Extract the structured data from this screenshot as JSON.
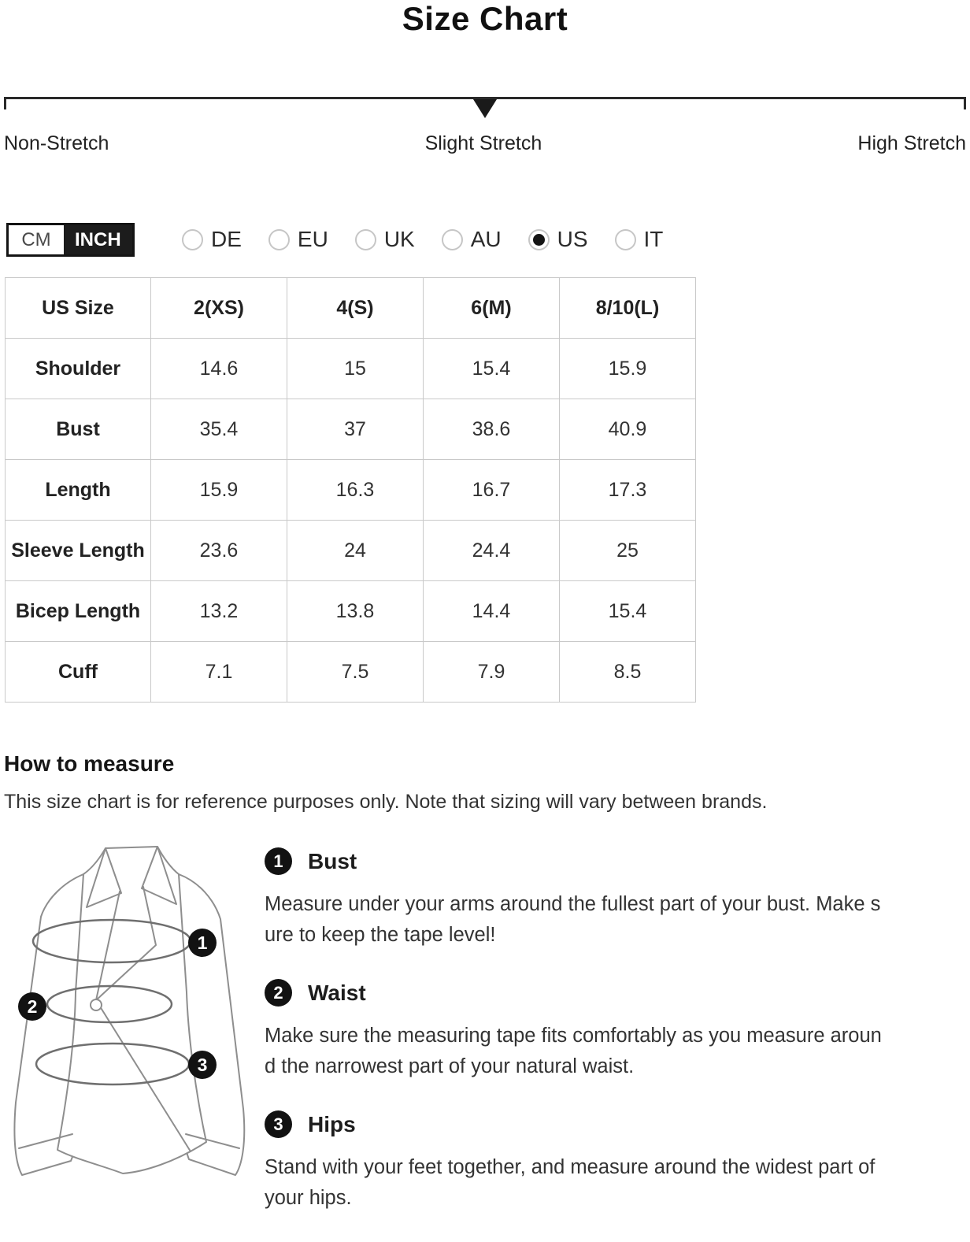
{
  "page": {
    "title": "Size Chart"
  },
  "stretch_bar": {
    "labels": [
      "Non-Stretch",
      "Slight Stretch",
      "High Stretch"
    ],
    "selected": "Slight Stretch"
  },
  "unit_toggle": {
    "options": [
      {
        "label": "CM",
        "selected": false
      },
      {
        "label": "INCH",
        "selected": true
      }
    ]
  },
  "region_radios": {
    "options": [
      {
        "label": "DE",
        "selected": false
      },
      {
        "label": "EU",
        "selected": false
      },
      {
        "label": "UK",
        "selected": false
      },
      {
        "label": "AU",
        "selected": false
      },
      {
        "label": "US",
        "selected": true
      },
      {
        "label": "IT",
        "selected": false
      }
    ]
  },
  "size_table": {
    "columns": [
      "US Size",
      "2(XS)",
      "4(S)",
      "6(M)",
      "8/10(L)"
    ],
    "rows": [
      {
        "label": "Shoulder",
        "values": [
          "14.6",
          "15",
          "15.4",
          "15.9"
        ]
      },
      {
        "label": "Bust",
        "values": [
          "35.4",
          "37",
          "38.6",
          "40.9"
        ]
      },
      {
        "label": "Length",
        "values": [
          "15.9",
          "16.3",
          "16.7",
          "17.3"
        ]
      },
      {
        "label": "Sleeve Length",
        "values": [
          "23.6",
          "24",
          "24.4",
          "25"
        ]
      },
      {
        "label": "Bicep Length",
        "values": [
          "13.2",
          "13.8",
          "14.4",
          "15.4"
        ]
      },
      {
        "label": "Cuff",
        "values": [
          "7.1",
          "7.5",
          "7.9",
          "8.5"
        ]
      }
    ]
  },
  "how_to_measure": {
    "heading": "How to measure",
    "note": "This size chart is for reference purposes only. Note that sizing will vary between brands.",
    "steps": [
      {
        "number": "1",
        "title": "Bust",
        "description": "Measure under your arms around the fullest part of your bust. Make s\nure to keep the tape level!"
      },
      {
        "number": "2",
        "title": "Waist",
        "description": "Make sure the measuring tape fits comfortably as you measure aroun\nd the narrowest part of your natural waist."
      },
      {
        "number": "3",
        "title": "Hips",
        "description": "Stand with your feet together, and measure around the widest part of\nyour hips."
      }
    ]
  },
  "colors": {
    "accent": "#151515",
    "table_border": "#c9c9c9",
    "text": "#2b2b2b"
  }
}
